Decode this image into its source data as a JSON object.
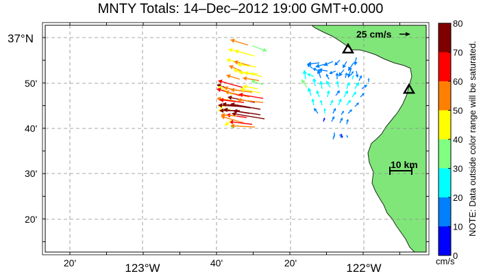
{
  "title": "MNTY Totals: 14–Dec–2012 19:00 GMT+0.000",
  "map": {
    "lat_axis": {
      "major_label": "37°N",
      "minor_labels": [
        "50'",
        "40'",
        "30'",
        "20'"
      ]
    },
    "lon_axis": {
      "minor_labels_left": [
        "20'"
      ],
      "major_left": "123°W",
      "minor_labels_mid": [
        "40'",
        "20'"
      ],
      "major_right": "122°W"
    },
    "land_color": "#80e67a",
    "scale_vector_label": "25 cm/s",
    "scale_distance_label": "10 km",
    "station_markers": [
      "triangle-station-north",
      "triangle-station-east"
    ]
  },
  "colorbar": {
    "tick_labels": [
      "80",
      "70",
      "60",
      "50",
      "40",
      "30",
      "20",
      "10",
      "0"
    ],
    "units": "cm/s",
    "note": "NOTE: Data outside color range will be saturated.",
    "colors": [
      "#800000",
      "#ff0000",
      "#ff8000",
      "#ffff00",
      "#80ff80",
      "#00ffff",
      "#0080ff",
      "#0000ff"
    ]
  }
}
